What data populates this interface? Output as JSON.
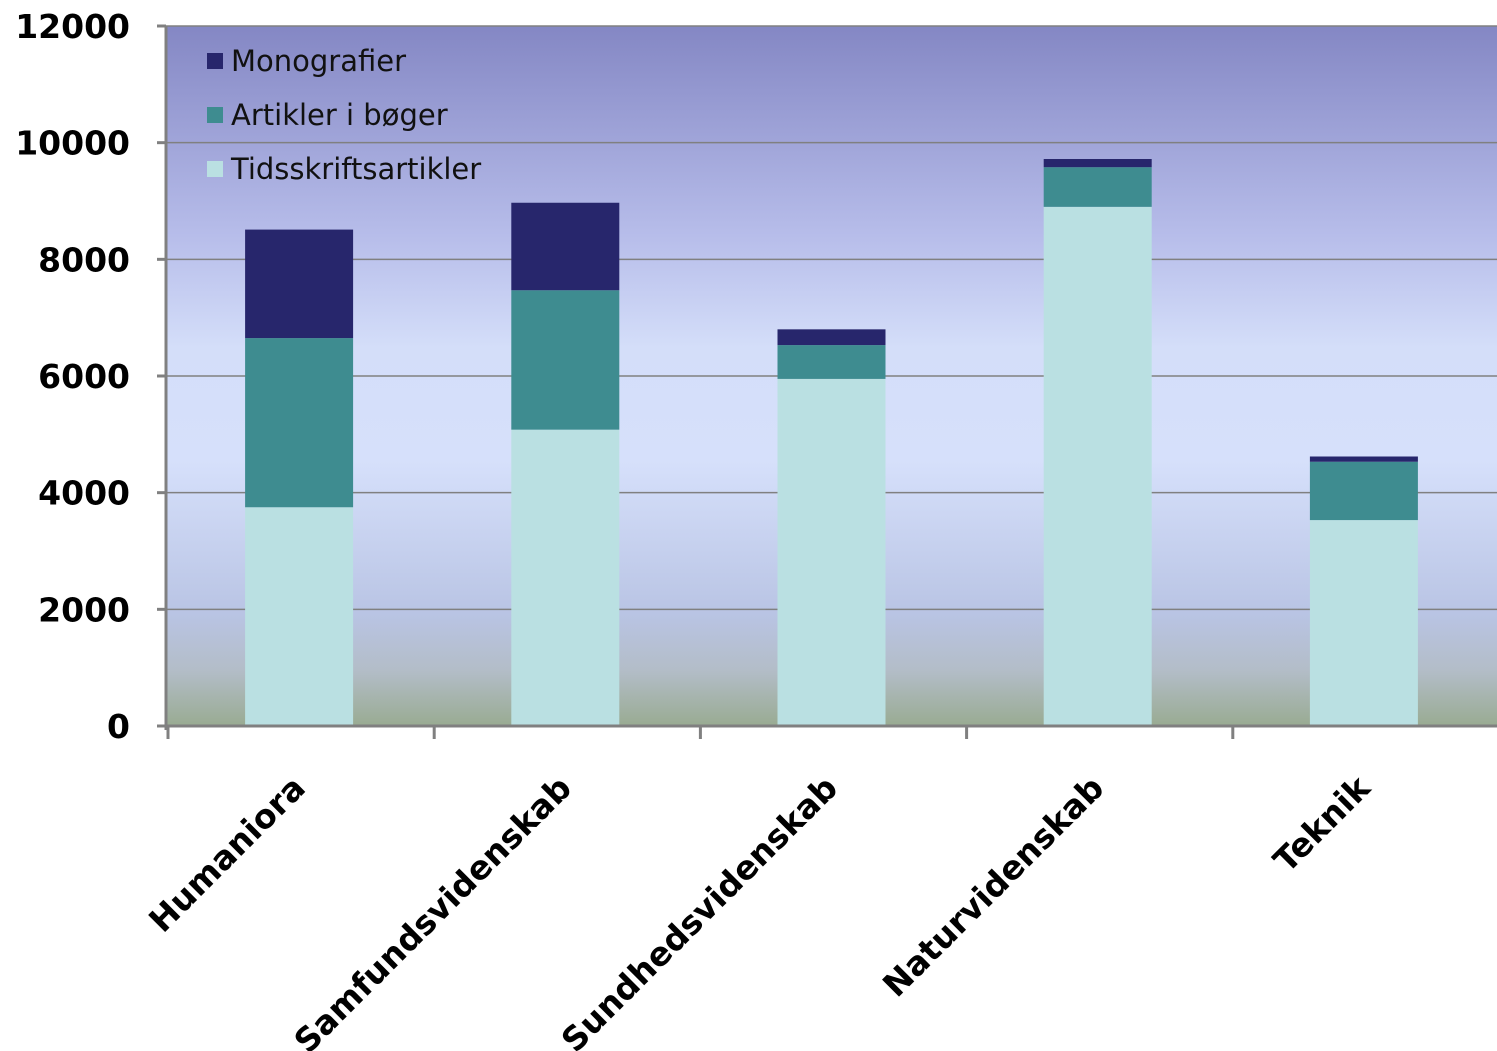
{
  "chart_data": {
    "type": "bar",
    "stacked": true,
    "categories": [
      "Humaniora",
      "Samfundsvidenskab",
      "Sundhedsvidenskab",
      "Naturvidenskab",
      "Teknik"
    ],
    "series": [
      {
        "name": "Tidsskriftsartikler",
        "color": "#bae0e2",
        "values": [
          3750,
          5080,
          5950,
          8900,
          3530
        ]
      },
      {
        "name": "Artikler i bøger",
        "color": "#3e8c90",
        "values": [
          2900,
          2390,
          580,
          680,
          1000
        ]
      },
      {
        "name": "Monografier",
        "color": "#27266c",
        "values": [
          1860,
          1500,
          270,
          140,
          90
        ]
      }
    ],
    "yticks": [
      "0",
      "2000",
      "4000",
      "6000",
      "8000",
      "10000",
      "12000"
    ],
    "ylim": [
      0,
      12000
    ],
    "grid": true,
    "legend": {
      "position": "top-left",
      "order": [
        "Monografier",
        "Artikler i bøger",
        "Tidsskriftsartikler"
      ]
    },
    "title": "",
    "xlabel": "",
    "ylabel": ""
  }
}
